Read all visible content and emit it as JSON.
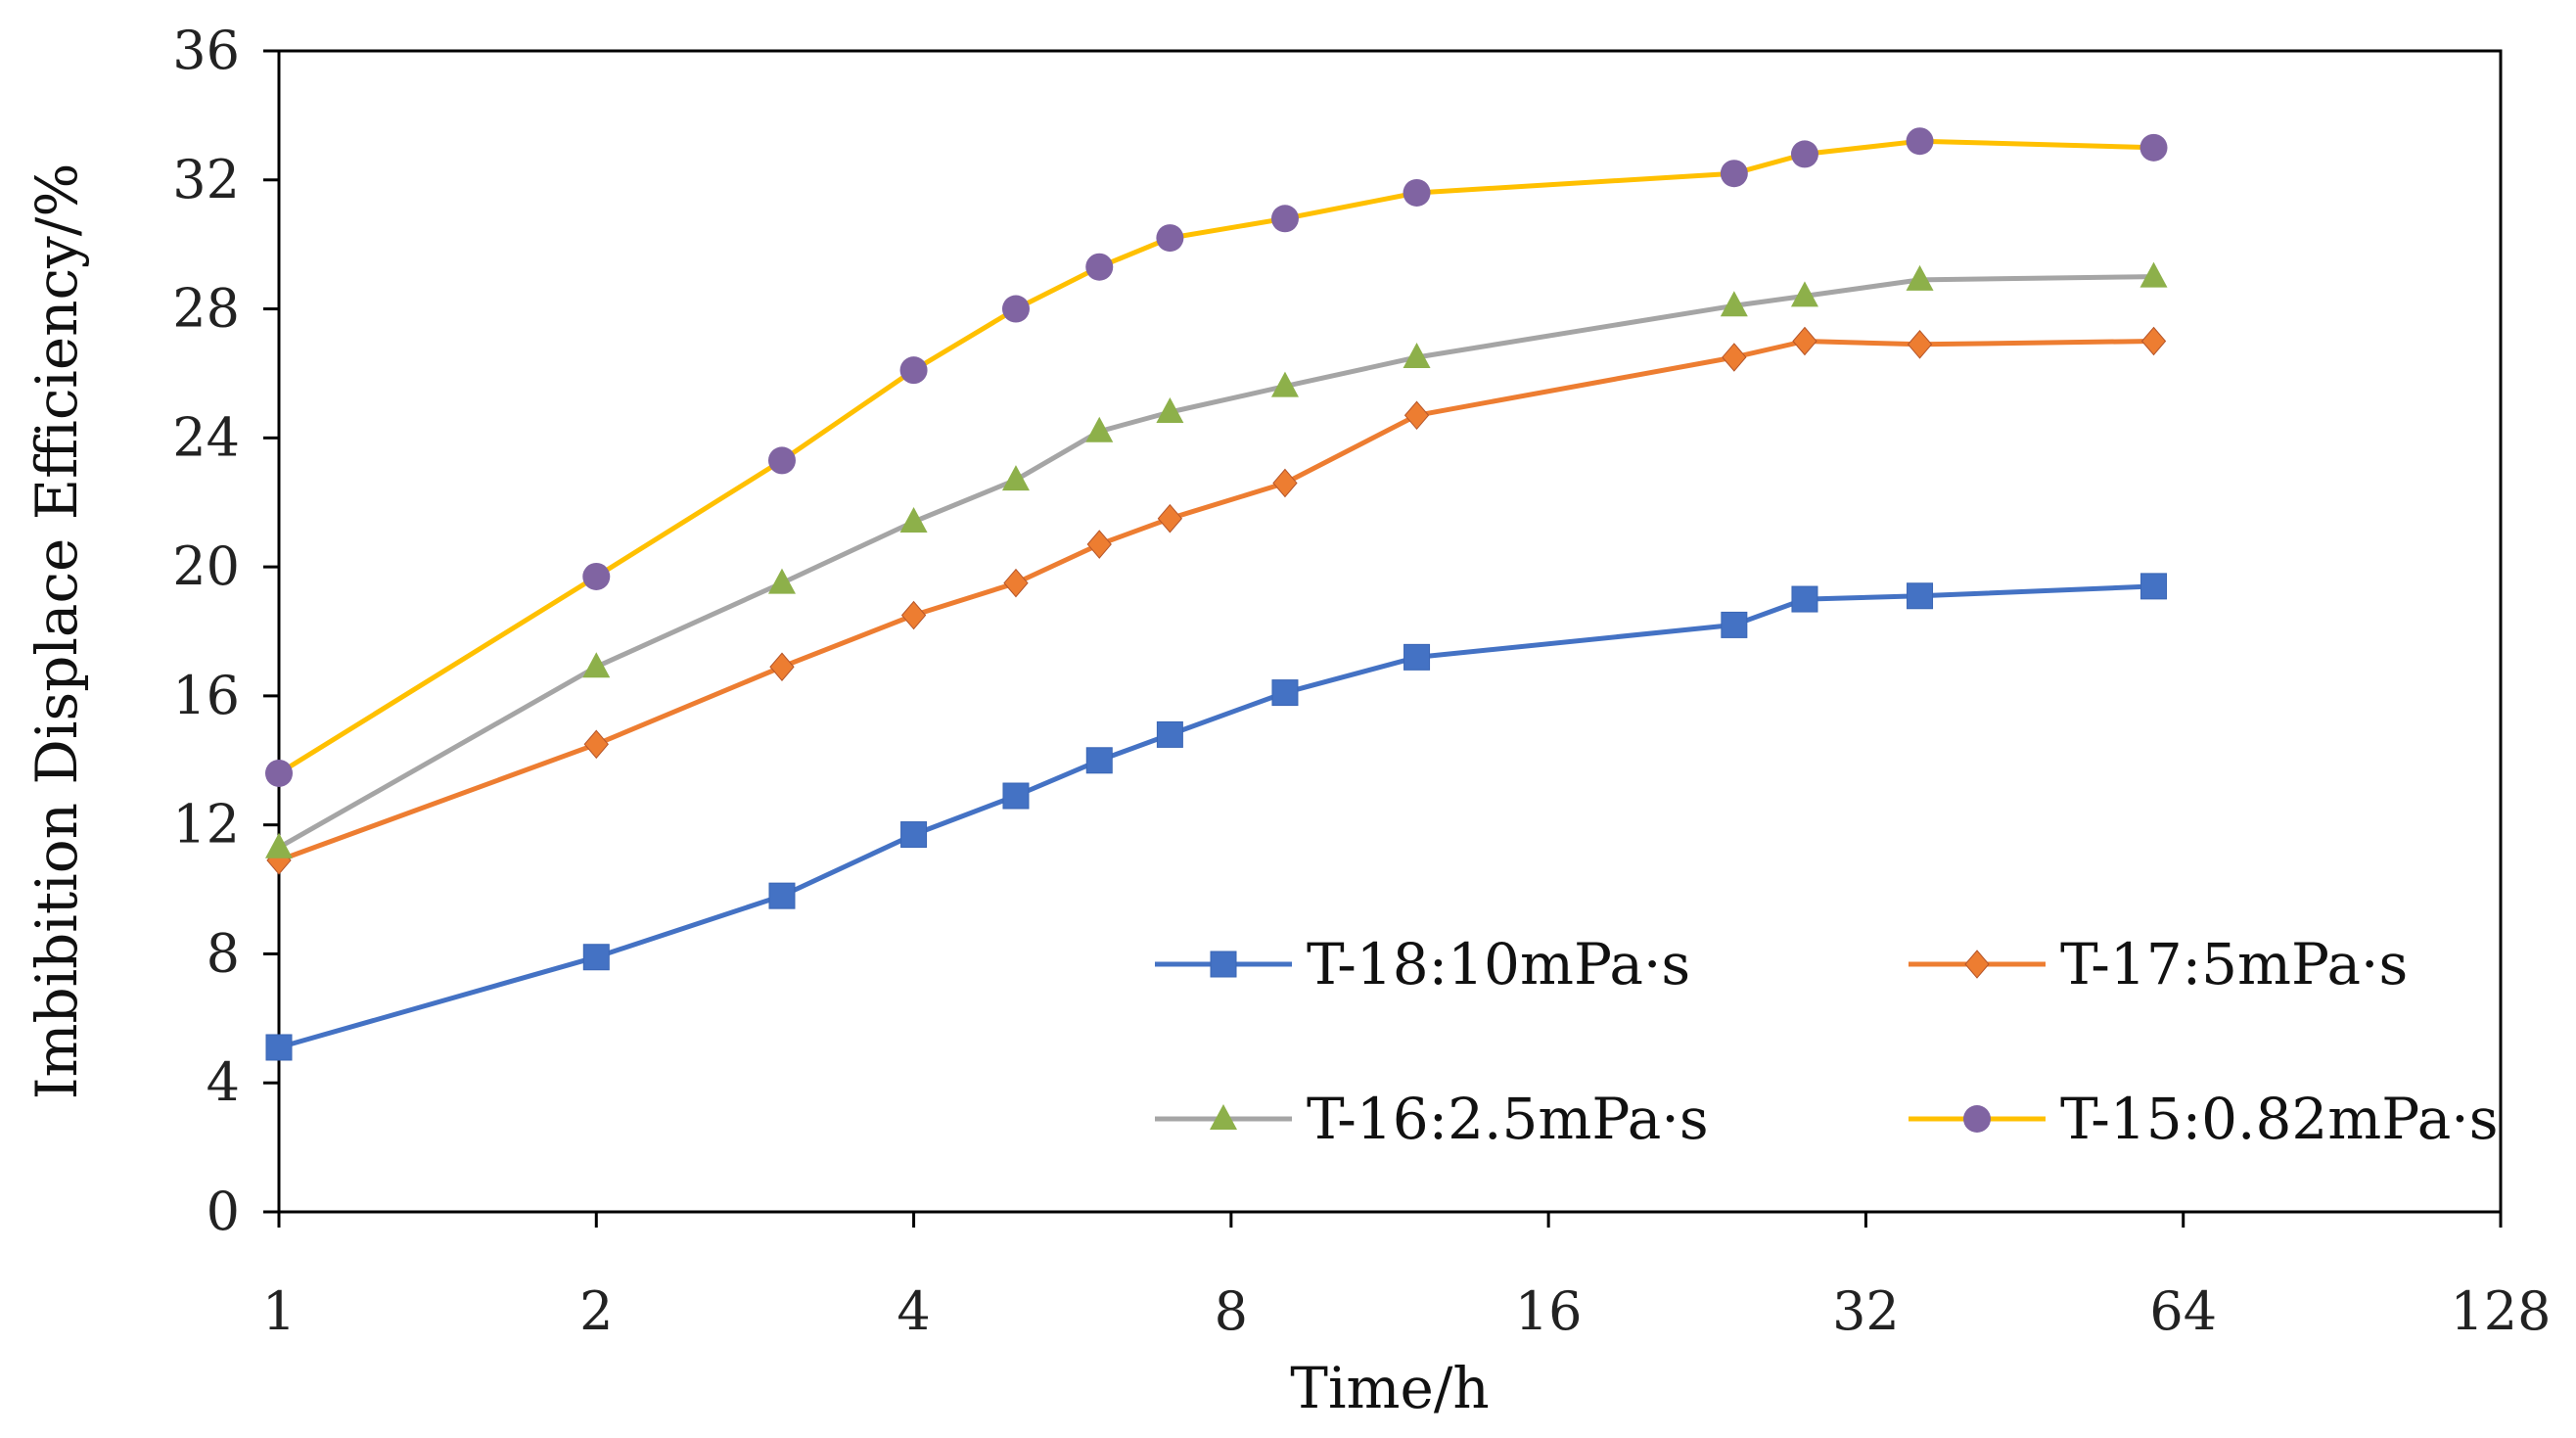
{
  "chart_data": {
    "type": "line",
    "title": "",
    "xlabel": "Time/h",
    "ylabel": "Imbibition Displace Efficiency/%",
    "x_scale": "log2",
    "xlim": [
      1,
      128
    ],
    "ylim": [
      0,
      36
    ],
    "x_ticks": [
      1,
      2,
      4,
      8,
      16,
      32,
      64,
      128
    ],
    "y_ticks": [
      0,
      4,
      8,
      12,
      16,
      20,
      24,
      28,
      32,
      36
    ],
    "grid": false,
    "legend_position": "lower-right",
    "series": [
      {
        "name": "T-18:10mPa·s",
        "color": "#4472C4",
        "marker": "square",
        "x": [
          1,
          2,
          3,
          4,
          5,
          6,
          7,
          9,
          12,
          24,
          28,
          36,
          60
        ],
        "y": [
          5.1,
          7.9,
          9.8,
          11.7,
          12.9,
          14.0,
          14.8,
          16.1,
          17.2,
          18.2,
          19.0,
          19.1,
          19.4
        ]
      },
      {
        "name": "T-17:5mPa·s",
        "color": "#ED7D31",
        "marker": "diamond",
        "x": [
          1,
          2,
          3,
          4,
          5,
          6,
          7,
          9,
          12,
          24,
          28,
          36,
          60
        ],
        "y": [
          10.9,
          14.5,
          16.9,
          18.5,
          19.5,
          20.7,
          21.5,
          22.6,
          24.7,
          26.5,
          27.0,
          26.9,
          27.0
        ]
      },
      {
        "name": "T-16:2.5mPa·s",
        "color": "#A5A5A5",
        "marker": "triangle",
        "marker_color": "#8DB04A",
        "x": [
          1,
          2,
          3,
          4,
          5,
          6,
          7,
          9,
          12,
          24,
          28,
          36,
          60
        ],
        "y": [
          11.3,
          16.9,
          19.5,
          21.4,
          22.7,
          24.2,
          24.8,
          25.6,
          26.5,
          28.1,
          28.4,
          28.9,
          29.0
        ]
      },
      {
        "name": "T-15:0.82mPa·s",
        "color": "#FFC000",
        "marker": "circle",
        "marker_color": "#8064A2",
        "x": [
          1,
          2,
          3,
          4,
          5,
          6,
          7,
          9,
          12,
          24,
          28,
          36,
          60
        ],
        "y": [
          13.6,
          19.7,
          23.3,
          26.1,
          28.0,
          29.3,
          30.2,
          30.8,
          31.6,
          32.2,
          32.8,
          33.2,
          33.0
        ]
      }
    ]
  }
}
